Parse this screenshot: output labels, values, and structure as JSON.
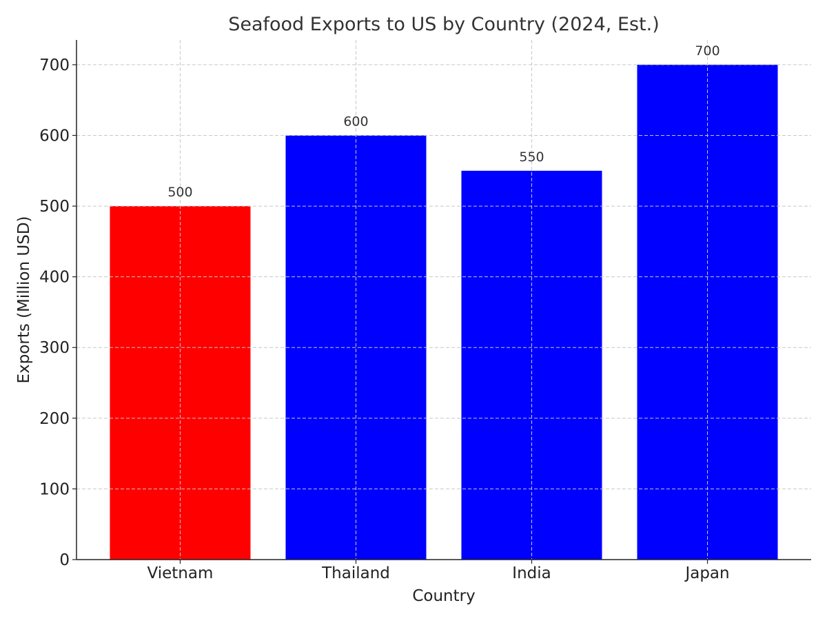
{
  "chart_data": {
    "type": "bar",
    "title": "Seafood Exports to US by Country (2024, Est.)",
    "xlabel": "Country",
    "ylabel": "Exports (Million USD)",
    "categories": [
      "Vietnam",
      "Thailand",
      "India",
      "Japan"
    ],
    "values": [
      500,
      600,
      550,
      700
    ],
    "data_labels": [
      "500",
      "600",
      "550",
      "700"
    ],
    "colors": [
      "#ff0000",
      "#0000ff",
      "#0000ff",
      "#0000ff"
    ],
    "ylim": [
      0,
      735
    ],
    "yticks": [
      0,
      100,
      200,
      300,
      400,
      500,
      600,
      700
    ],
    "grid": true
  }
}
